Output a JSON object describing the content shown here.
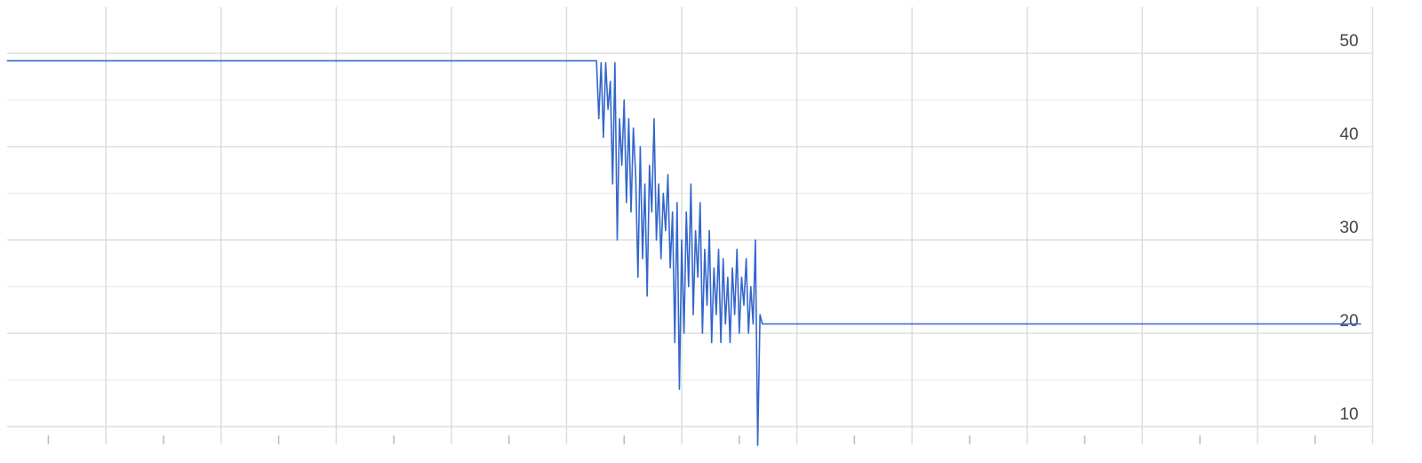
{
  "chart_data": {
    "type": "line",
    "x": [
      -43,
      213,
      214,
      215,
      216,
      217,
      218,
      219,
      220,
      221,
      222,
      223,
      224,
      225,
      226,
      227,
      228,
      229,
      230,
      231,
      232,
      233,
      234,
      235,
      236,
      237,
      238,
      239,
      240,
      241,
      242,
      243,
      244,
      245,
      246,
      247,
      248,
      249,
      250,
      251,
      252,
      253,
      254,
      255,
      256,
      257,
      258,
      259,
      260,
      261,
      262,
      263,
      264,
      265,
      266,
      267,
      268,
      269,
      270,
      271,
      272,
      273,
      274,
      275,
      276,
      277,
      278,
      279,
      280,
      281,
      282,
      283,
      284,
      285,
      545
    ],
    "series": [
      {
        "color": "#3366cc",
        "values": [
          49.2,
          49.2,
          43,
          49,
          41,
          49,
          44,
          47,
          36,
          49,
          30,
          43,
          38,
          45,
          34,
          43,
          33,
          42,
          37,
          26,
          40,
          28,
          36,
          24,
          38,
          33,
          43,
          30,
          36,
          28,
          35,
          31,
          37,
          27,
          33,
          19,
          34,
          14,
          30,
          20,
          33,
          25,
          36,
          22,
          31,
          26,
          34,
          20,
          29,
          23,
          31,
          19,
          27,
          22,
          29,
          19,
          28,
          21,
          26,
          19,
          27,
          22,
          29,
          20,
          26,
          23,
          28,
          20,
          25,
          21,
          30,
          8,
          22,
          21,
          21
        ]
      }
    ],
    "xlim": [
      -46,
      556
    ],
    "xticks": [
      0,
      50,
      100,
      150,
      200,
      250,
      300,
      350,
      400,
      450,
      500,
      550
    ],
    "minor_xticks": [
      -25,
      25,
      75,
      125,
      175,
      225,
      275,
      325,
      375,
      425,
      475,
      525
    ],
    "ylim": [
      8,
      55
    ],
    "yticks": [
      10,
      20,
      30,
      40,
      50
    ],
    "minor_yticks": [
      15,
      25,
      35,
      45
    ],
    "grid": true
  }
}
